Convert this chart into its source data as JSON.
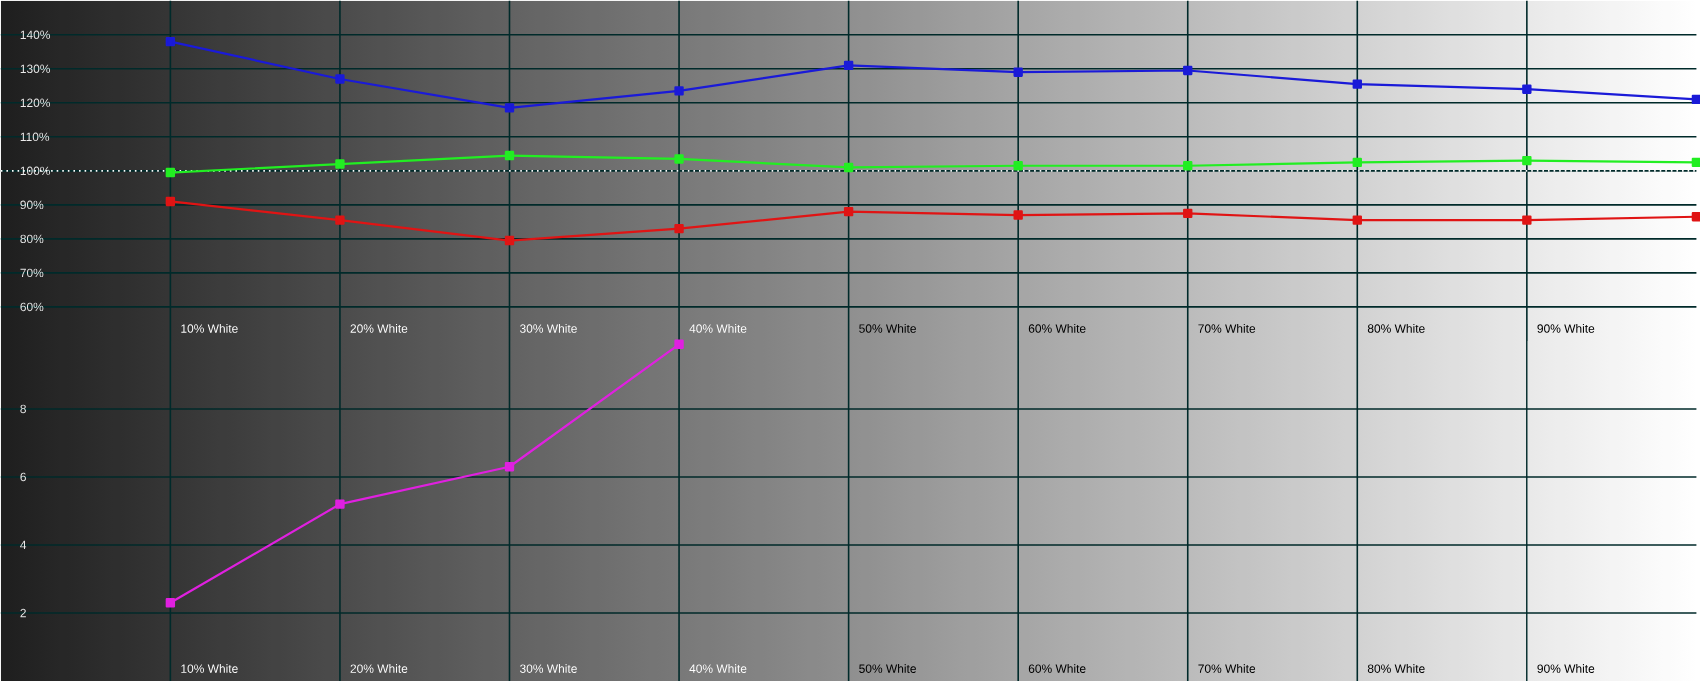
{
  "chart_data": [
    {
      "type": "line",
      "categories": [
        "10% White",
        "20% White",
        "30% White",
        "40% White",
        "50% White",
        "60% White",
        "70% White",
        "80% White",
        "90% White",
        null
      ],
      "series": [
        {
          "color": "#1a1ad8",
          "values": [
            138,
            127,
            118.5,
            123.5,
            131,
            129,
            129.5,
            125.5,
            124,
            121
          ]
        },
        {
          "color": "#22ee22",
          "values": [
            99.5,
            102,
            104.5,
            103.5,
            101,
            101.5,
            101.5,
            102.5,
            103,
            102.5
          ]
        },
        {
          "color": "#e01414",
          "values": [
            91,
            85.5,
            79.5,
            83,
            88,
            87,
            87.5,
            85.5,
            85.5,
            86.5
          ]
        }
      ],
      "ylim": [
        50,
        150
      ],
      "yticks": [
        {
          "value": 60,
          "label": "60%"
        },
        {
          "value": 70,
          "label": "70%"
        },
        {
          "value": 80,
          "label": "80%"
        },
        {
          "value": 90,
          "label": "90%"
        },
        {
          "value": 100,
          "label": "100%"
        },
        {
          "value": 110,
          "label": "110%"
        },
        {
          "value": 120,
          "label": "120%"
        },
        {
          "value": 130,
          "label": "130%"
        },
        {
          "value": 140,
          "label": "140%"
        }
      ],
      "ref_lines": [
        {
          "axis": "y",
          "value": 100,
          "color": "#ffffff",
          "line_style": "dotted"
        }
      ],
      "grid": true,
      "marker": "square"
    },
    {
      "type": "line",
      "categories": [
        "10% White",
        "20% White",
        "30% White",
        "40% White",
        "50% White",
        "60% White",
        "70% White",
        "80% White",
        "90% White",
        null
      ],
      "series": [
        {
          "color": "#e020e0",
          "values": [
            2.3,
            5.2,
            6.3,
            9.9,
            null,
            null,
            null,
            null,
            null,
            null
          ]
        }
      ],
      "ylim": [
        0,
        10
      ],
      "yticks": [
        2,
        4,
        6,
        8
      ],
      "grid": true,
      "marker": "square"
    }
  ]
}
